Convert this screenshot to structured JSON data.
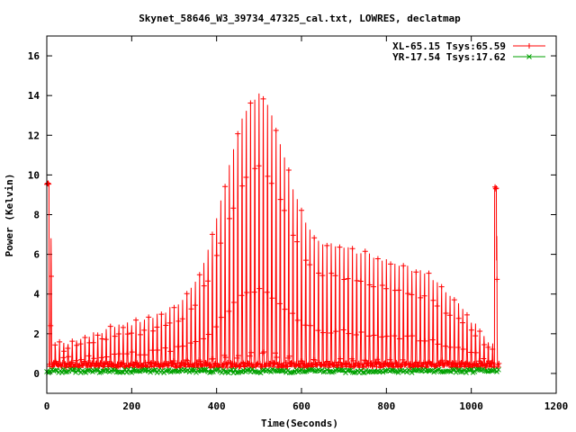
{
  "chart_data": {
    "type": "line",
    "title": "Skynet_58646_W3_39734_47325_cal.txt, LOWRES, declatmap",
    "xlabel": "Time(Seconds)",
    "ylabel": "Power (Kelvin)",
    "xlim": [
      0,
      1200
    ],
    "ylim": [
      -1,
      17
    ],
    "xticks": [
      0,
      200,
      400,
      600,
      800,
      1000,
      1200
    ],
    "yticks": [
      0,
      2,
      4,
      6,
      8,
      10,
      12,
      14,
      16
    ],
    "grid": false,
    "legend_position": "top-right",
    "colors": {
      "XL": "#ff0000",
      "YR": "#00a000"
    },
    "series": [
      {
        "name": "XL-65.15 Tsys:65.59",
        "marker": "plus",
        "color": "#ff0000",
        "peaks": [
          [
            0,
            9.6
          ],
          [
            5,
            9.6
          ],
          [
            20,
            1.4
          ],
          [
            40,
            1.5
          ],
          [
            60,
            1.6
          ],
          [
            80,
            1.7
          ],
          [
            100,
            1.9
          ],
          [
            120,
            2.0
          ],
          [
            140,
            2.2
          ],
          [
            160,
            2.3
          ],
          [
            180,
            2.4
          ],
          [
            200,
            2.5
          ],
          [
            220,
            2.6
          ],
          [
            240,
            2.7
          ],
          [
            260,
            2.9
          ],
          [
            280,
            3.1
          ],
          [
            300,
            3.3
          ],
          [
            320,
            3.7
          ],
          [
            340,
            4.2
          ],
          [
            360,
            5.0
          ],
          [
            380,
            6.2
          ],
          [
            400,
            7.7
          ],
          [
            420,
            9.5
          ],
          [
            440,
            11.2
          ],
          [
            460,
            12.7
          ],
          [
            480,
            13.6
          ],
          [
            495,
            14.0
          ],
          [
            510,
            13.9
          ],
          [
            525,
            13.2
          ],
          [
            540,
            12.3
          ],
          [
            555,
            11.2
          ],
          [
            570,
            10.1
          ],
          [
            585,
            9.0
          ],
          [
            600,
            8.1
          ],
          [
            615,
            7.4
          ],
          [
            630,
            6.9
          ],
          [
            645,
            6.6
          ],
          [
            660,
            6.5
          ],
          [
            675,
            6.5
          ],
          [
            690,
            6.4
          ],
          [
            705,
            6.3
          ],
          [
            720,
            6.2
          ],
          [
            735,
            6.1
          ],
          [
            750,
            6.0
          ],
          [
            765,
            5.9
          ],
          [
            780,
            5.8
          ],
          [
            795,
            5.7
          ],
          [
            810,
            5.6
          ],
          [
            825,
            5.5
          ],
          [
            840,
            5.4
          ],
          [
            855,
            5.3
          ],
          [
            870,
            5.2
          ],
          [
            885,
            5.1
          ],
          [
            900,
            4.9
          ],
          [
            915,
            4.6
          ],
          [
            930,
            4.3
          ],
          [
            945,
            4.0
          ],
          [
            960,
            3.7
          ],
          [
            975,
            3.3
          ],
          [
            990,
            2.9
          ],
          [
            1005,
            2.5
          ],
          [
            1020,
            2.1
          ],
          [
            1035,
            1.7
          ],
          [
            1050,
            1.2
          ],
          [
            1058,
            9.5
          ],
          [
            1065,
            0.3
          ]
        ]
      },
      {
        "name": "YR-17.54 Tsys:17.62",
        "marker": "cross",
        "color": "#00a000",
        "baseline": 0.12
      }
    ]
  }
}
